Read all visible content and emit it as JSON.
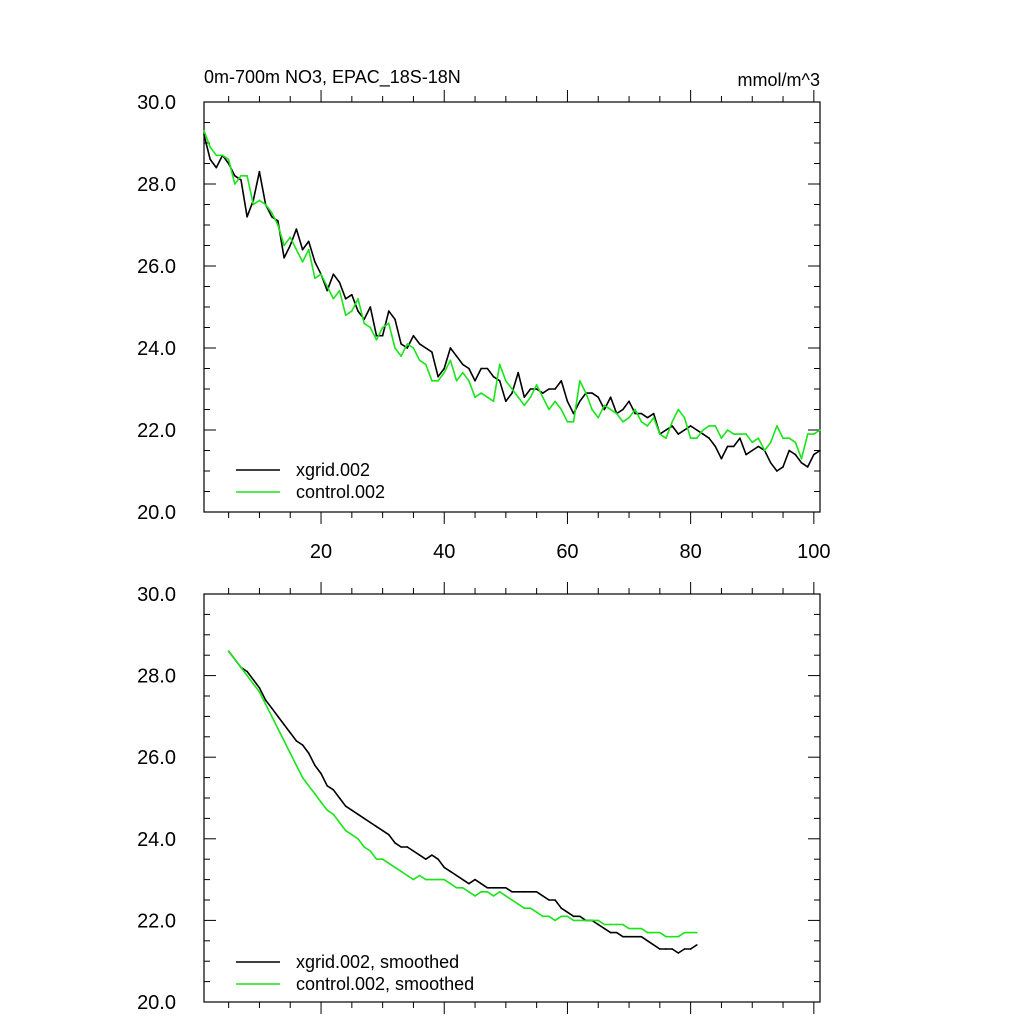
{
  "figure": {
    "title": "0m-700m NO3, EPAC_18S-18N",
    "units": "mmol/m^3"
  },
  "chart_data": [
    {
      "type": "line",
      "title": "0m-700m NO3, EPAC_18S-18N",
      "units": "mmol/m^3",
      "xlabel": "",
      "ylabel": "",
      "xlim": [
        1,
        101
      ],
      "ylim": [
        20,
        30
      ],
      "x_ticks": [
        20,
        40,
        60,
        80,
        100
      ],
      "x_tick_labels": [
        "20",
        "40",
        "60",
        "80",
        "100"
      ],
      "y_ticks": [
        20,
        22,
        24,
        26,
        28,
        30
      ],
      "y_tick_labels": [
        "20.0",
        "22.0",
        "24.0",
        "26.0",
        "28.0",
        "30.0"
      ],
      "legend_position": "bottom-left",
      "x_start": 1,
      "series": [
        {
          "name": "xgrid.002",
          "color": "#000000",
          "values": [
            29.2,
            28.6,
            28.4,
            28.7,
            28.5,
            28.2,
            28.1,
            27.2,
            27.6,
            28.3,
            27.5,
            27.2,
            27.1,
            26.2,
            26.5,
            26.9,
            26.4,
            26.6,
            26.1,
            25.8,
            25.4,
            25.8,
            25.6,
            25.2,
            25.3,
            24.9,
            24.7,
            25.0,
            24.3,
            24.3,
            24.9,
            24.7,
            24.1,
            24.0,
            24.3,
            24.1,
            24.0,
            23.9,
            23.3,
            23.5,
            24.0,
            23.8,
            23.6,
            23.5,
            23.2,
            23.5,
            23.5,
            23.3,
            23.2,
            22.7,
            22.9,
            23.4,
            22.8,
            23.0,
            23.0,
            22.9,
            23.0,
            23.0,
            23.2,
            22.7,
            22.4,
            22.7,
            22.9,
            22.9,
            22.8,
            22.5,
            22.8,
            22.4,
            22.5,
            22.7,
            22.4,
            22.4,
            22.3,
            22.4,
            21.9,
            22.0,
            22.1,
            21.9,
            22.0,
            22.1,
            22.0,
            21.9,
            21.8,
            21.6,
            21.3,
            21.6,
            21.6,
            21.8,
            21.4,
            21.5,
            21.6,
            21.5,
            21.2,
            21.0,
            21.1,
            21.5,
            21.4,
            21.2,
            21.1,
            21.4,
            21.5
          ]
        },
        {
          "name": "control.002",
          "color": "#19e519",
          "values": [
            29.3,
            28.9,
            28.7,
            28.7,
            28.6,
            28.0,
            28.2,
            28.2,
            27.5,
            27.6,
            27.5,
            27.3,
            27.0,
            26.5,
            26.7,
            26.4,
            26.1,
            26.4,
            25.7,
            25.8,
            25.5,
            25.2,
            25.4,
            24.8,
            24.9,
            25.2,
            24.6,
            24.5,
            24.2,
            24.5,
            24.6,
            24.0,
            23.8,
            24.1,
            24.0,
            23.7,
            23.6,
            23.2,
            23.2,
            23.4,
            23.7,
            23.2,
            23.4,
            23.2,
            22.8,
            22.9,
            22.8,
            22.7,
            23.6,
            23.2,
            23.0,
            22.8,
            22.6,
            22.8,
            23.1,
            22.8,
            22.5,
            22.7,
            22.5,
            22.2,
            22.2,
            23.2,
            22.9,
            22.5,
            22.3,
            22.6,
            22.5,
            22.4,
            22.2,
            22.3,
            22.5,
            22.2,
            22.1,
            22.3,
            21.9,
            21.8,
            22.2,
            22.5,
            22.3,
            21.8,
            21.8,
            22.0,
            22.1,
            22.1,
            21.8,
            22.0,
            21.9,
            21.9,
            21.9,
            21.7,
            21.8,
            21.5,
            21.7,
            22.1,
            21.8,
            21.8,
            21.7,
            21.3,
            21.9,
            21.9,
            22.0
          ]
        }
      ]
    },
    {
      "type": "line",
      "title": "",
      "xlabel": "",
      "ylabel": "",
      "xlim": [
        1,
        101
      ],
      "ylim": [
        20,
        30
      ],
      "x_ticks": [
        20,
        40,
        60,
        80,
        100
      ],
      "x_tick_labels": [],
      "y_ticks": [
        20,
        22,
        24,
        26,
        28,
        30
      ],
      "y_tick_labels": [
        "20.0",
        "22.0",
        "24.0",
        "26.0",
        "28.0",
        "30.0"
      ],
      "legend_position": "bottom-left",
      "x_start": 5,
      "series": [
        {
          "name": "xgrid.002, smoothed",
          "color": "#000000",
          "values": [
            28.6,
            28.4,
            28.2,
            28.1,
            27.9,
            27.7,
            27.4,
            27.2,
            27.0,
            26.8,
            26.6,
            26.4,
            26.3,
            26.1,
            25.8,
            25.6,
            25.3,
            25.2,
            25.0,
            24.8,
            24.7,
            24.6,
            24.5,
            24.4,
            24.3,
            24.2,
            24.1,
            23.9,
            23.8,
            23.8,
            23.7,
            23.6,
            23.5,
            23.6,
            23.5,
            23.3,
            23.2,
            23.1,
            23.0,
            22.9,
            23.0,
            22.9,
            22.8,
            22.8,
            22.8,
            22.8,
            22.7,
            22.7,
            22.7,
            22.7,
            22.7,
            22.6,
            22.5,
            22.5,
            22.3,
            22.2,
            22.1,
            22.1,
            22.0,
            22.0,
            21.9,
            21.8,
            21.7,
            21.7,
            21.6,
            21.6,
            21.6,
            21.6,
            21.5,
            21.4,
            21.3,
            21.3,
            21.3,
            21.2,
            21.3,
            21.3,
            21.4
          ]
        },
        {
          "name": "control.002, smoothed",
          "color": "#19e519",
          "values": [
            28.6,
            28.4,
            28.2,
            28.0,
            27.8,
            27.6,
            27.3,
            27.0,
            26.7,
            26.4,
            26.1,
            25.8,
            25.5,
            25.3,
            25.1,
            24.9,
            24.7,
            24.6,
            24.4,
            24.2,
            24.1,
            24.0,
            23.8,
            23.7,
            23.5,
            23.5,
            23.4,
            23.3,
            23.2,
            23.1,
            23.0,
            23.1,
            23.0,
            23.0,
            23.0,
            23.0,
            22.9,
            22.8,
            22.8,
            22.7,
            22.6,
            22.7,
            22.7,
            22.6,
            22.7,
            22.6,
            22.5,
            22.4,
            22.3,
            22.3,
            22.2,
            22.1,
            22.1,
            22.0,
            22.1,
            22.1,
            22.0,
            22.0,
            22.0,
            22.0,
            22.0,
            21.9,
            21.9,
            21.9,
            21.9,
            21.8,
            21.8,
            21.8,
            21.7,
            21.7,
            21.7,
            21.6,
            21.6,
            21.6,
            21.7,
            21.7,
            21.7
          ]
        }
      ]
    }
  ]
}
